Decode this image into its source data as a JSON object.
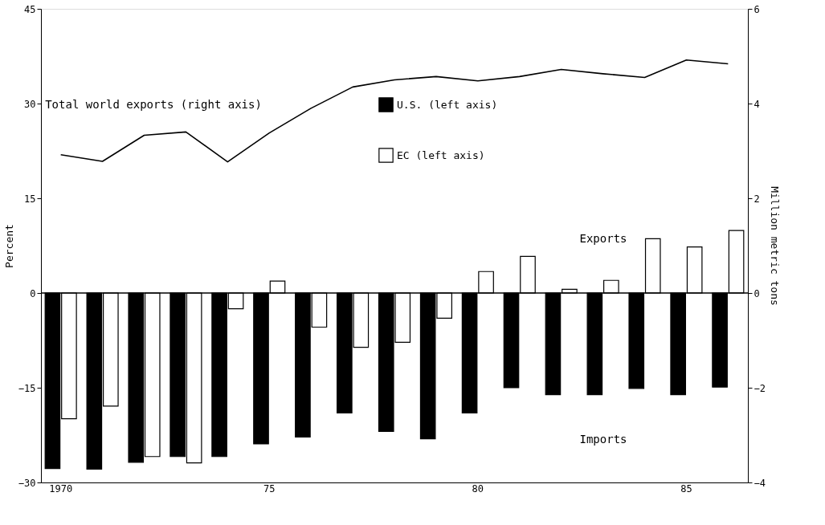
{
  "chart_data": {
    "type": "bar",
    "categories": [
      "1970",
      null,
      null,
      null,
      null,
      "75",
      null,
      null,
      null,
      null,
      "80",
      null,
      null,
      null,
      null,
      "85",
      null
    ],
    "ylabel": "Percent",
    "y2label": "Million metric tons",
    "ylim": [
      -30,
      45
    ],
    "yticks": [
      -30,
      -15,
      0,
      15,
      30,
      45
    ],
    "y2lim": [
      -4,
      6
    ],
    "y2ticks": [
      -4,
      -2,
      0,
      2,
      4,
      6
    ],
    "series": [
      {
        "name": "U.S. (left axis)",
        "color": "#000000",
        "values": [
          -27.8,
          -27.9,
          -26.8,
          -25.9,
          -25.9,
          -23.9,
          -22.8,
          -19.0,
          -21.9,
          -23.1,
          -19.0,
          -15.0,
          -16.1,
          -16.1,
          -15.1,
          -16.1,
          -14.9
        ]
      },
      {
        "name": "EC (left axis)",
        "color": "#ffffff",
        "values": [
          -19.9,
          -17.9,
          -25.9,
          -26.9,
          -2.5,
          1.9,
          -5.4,
          -8.6,
          -7.8,
          -4.0,
          3.4,
          5.8,
          0.6,
          2.0,
          8.6,
          7.3,
          9.9
        ]
      },
      {
        "name": "Total world exports (right axis)",
        "type": "line",
        "axis": "y2",
        "color": "#000000",
        "values": [
          2.92,
          2.78,
          3.33,
          3.4,
          2.77,
          3.38,
          3.9,
          4.35,
          4.5,
          4.57,
          4.48,
          4.57,
          4.72,
          4.63,
          4.55,
          4.92,
          4.84
        ]
      }
    ],
    "annotations": [
      "Exports",
      "Imports"
    ],
    "ref_lines": [
      {
        "axis": "y",
        "value": 0,
        "color": "#000000"
      }
    ],
    "legend": "top",
    "grid": false,
    "marker": "none",
    "line_style": "solid"
  }
}
